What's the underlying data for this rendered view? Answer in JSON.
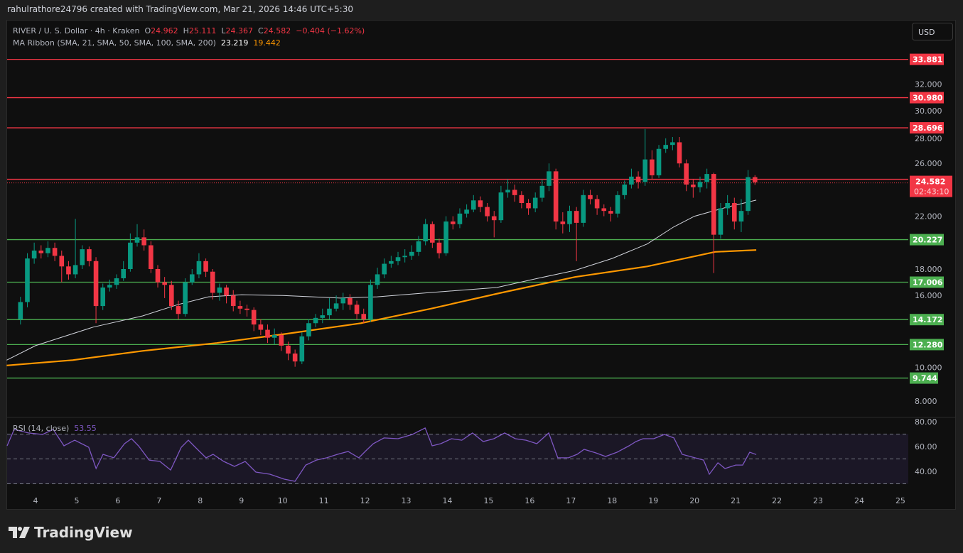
{
  "watermark": "rahulrathore24796 created with TradingView.com, Mar 21, 2026 14:46 UTC+5:30",
  "legend": {
    "symbol": "RIVER / U. S. Dollar · 4h · Kraken",
    "o_label": "O",
    "o": "24.962",
    "h_label": "H",
    "h": "25.111",
    "l_label": "L",
    "l": "24.367",
    "c_label": "C",
    "c": "24.582",
    "change": "−0.404 (−1.62%)",
    "ma_label": "MA Ribbon (SMA, 21, SMA, 50, SMA, 100, SMA, 200)",
    "ma1": "23.219",
    "ma2": "19.442"
  },
  "currency_button": "USD",
  "rsi_label": "RSI (14, close)",
  "rsi_value": "53.55",
  "countdown": "02:43:10",
  "brand": "TradingView",
  "colors": {
    "up": "#089981",
    "down": "#f23645",
    "resistance": "#f23645",
    "support": "#4caf50",
    "ma_fast": "#d1d4dc",
    "ma_slow": "#ff9800",
    "rsi": "#7e57c2"
  },
  "chart_data": {
    "type": "candlestick",
    "timeframe": "4h",
    "first_candle_day": 3.6,
    "candles_per_day": 6,
    "price_ticks": [
      "32.000",
      "30.000",
      "28.000",
      "26.000",
      "22.000",
      "18.000",
      "16.000",
      "10.000",
      "8.000"
    ],
    "x_ticks": [
      "4",
      "5",
      "6",
      "7",
      "8",
      "9",
      "10",
      "11",
      "12",
      "13",
      "14",
      "15",
      "16",
      "17",
      "18",
      "19",
      "20",
      "21",
      "22",
      "23",
      "24",
      "25"
    ],
    "current_price": "24.582",
    "resistance_levels": [
      "33.881",
      "30.980",
      "28.696"
    ],
    "support_levels": [
      "20.227",
      "17.006",
      "14.172",
      "12.280",
      "9.744"
    ],
    "candles": [
      [
        14.2,
        15.9,
        13.8,
        15.5
      ],
      [
        15.5,
        19.2,
        15.1,
        18.8
      ],
      [
        18.8,
        20.0,
        18.4,
        19.4
      ],
      [
        19.4,
        19.8,
        18.8,
        19.2
      ],
      [
        19.2,
        20.1,
        18.9,
        19.6
      ],
      [
        19.6,
        20.0,
        18.6,
        19.0
      ],
      [
        19.0,
        19.4,
        17.0,
        18.2
      ],
      [
        18.2,
        18.6,
        17.2,
        17.6
      ],
      [
        17.6,
        21.8,
        17.3,
        18.3
      ],
      [
        18.3,
        19.8,
        18.0,
        19.5
      ],
      [
        19.5,
        19.7,
        18.2,
        18.6
      ],
      [
        18.6,
        18.9,
        13.9,
        15.2
      ],
      [
        15.2,
        16.9,
        14.9,
        16.6
      ],
      [
        16.6,
        17.2,
        16.3,
        16.8
      ],
      [
        16.8,
        17.6,
        16.5,
        17.3
      ],
      [
        17.3,
        18.6,
        17.1,
        18.0
      ],
      [
        18.0,
        20.7,
        17.8,
        20.0
      ],
      [
        20.0,
        21.4,
        19.7,
        20.4
      ],
      [
        20.4,
        21.0,
        19.4,
        19.8
      ],
      [
        19.8,
        20.1,
        17.7,
        18.0
      ],
      [
        18.0,
        18.3,
        16.6,
        17.0
      ],
      [
        17.0,
        17.4,
        15.8,
        16.8
      ],
      [
        16.8,
        17.1,
        14.9,
        15.2
      ],
      [
        15.2,
        15.6,
        14.2,
        14.6
      ],
      [
        14.6,
        17.3,
        14.4,
        17.0
      ],
      [
        17.0,
        18.0,
        16.8,
        17.6
      ],
      [
        17.6,
        19.2,
        17.3,
        18.6
      ],
      [
        18.6,
        18.8,
        17.4,
        17.8
      ],
      [
        17.8,
        18.0,
        15.7,
        16.2
      ],
      [
        16.2,
        16.9,
        15.6,
        16.6
      ],
      [
        16.6,
        16.8,
        15.4,
        16.0
      ],
      [
        16.0,
        16.4,
        14.8,
        15.2
      ],
      [
        15.2,
        15.6,
        14.6,
        15.0
      ],
      [
        15.0,
        15.3,
        14.4,
        14.9
      ],
      [
        14.9,
        15.1,
        13.3,
        13.8
      ],
      [
        13.8,
        14.2,
        13.0,
        13.4
      ],
      [
        13.4,
        13.8,
        12.4,
        12.8
      ],
      [
        12.8,
        13.5,
        12.3,
        13.0
      ],
      [
        13.0,
        13.2,
        11.8,
        12.2
      ],
      [
        12.2,
        12.5,
        11.1,
        11.6
      ],
      [
        11.6,
        11.9,
        10.6,
        11.0
      ],
      [
        11.0,
        13.2,
        10.8,
        12.9
      ],
      [
        12.9,
        14.2,
        12.6,
        13.9
      ],
      [
        13.9,
        14.6,
        13.6,
        14.3
      ],
      [
        14.3,
        15.0,
        13.9,
        14.5
      ],
      [
        14.5,
        15.8,
        14.2,
        15.0
      ],
      [
        15.0,
        16.0,
        14.8,
        15.4
      ],
      [
        15.4,
        16.2,
        14.9,
        15.8
      ],
      [
        15.8,
        16.1,
        14.9,
        15.3
      ],
      [
        15.3,
        15.6,
        14.2,
        14.6
      ],
      [
        14.6,
        15.0,
        13.9,
        14.2
      ],
      [
        14.2,
        17.2,
        14.0,
        16.8
      ],
      [
        16.8,
        18.1,
        16.5,
        17.6
      ],
      [
        17.6,
        18.8,
        17.3,
        18.4
      ],
      [
        18.4,
        19.0,
        18.1,
        18.6
      ],
      [
        18.6,
        19.3,
        18.3,
        18.9
      ],
      [
        18.9,
        19.5,
        18.5,
        19.0
      ],
      [
        19.0,
        19.8,
        18.7,
        19.3
      ],
      [
        19.3,
        20.5,
        19.0,
        20.1
      ],
      [
        20.1,
        21.8,
        19.8,
        21.4
      ],
      [
        21.4,
        21.6,
        19.6,
        20.0
      ],
      [
        20.0,
        20.3,
        18.8,
        19.2
      ],
      [
        19.2,
        22.0,
        19.0,
        21.6
      ],
      [
        21.6,
        22.0,
        21.0,
        21.4
      ],
      [
        21.4,
        22.6,
        21.1,
        22.2
      ],
      [
        22.2,
        22.9,
        21.9,
        22.5
      ],
      [
        22.5,
        23.6,
        22.3,
        23.2
      ],
      [
        23.2,
        23.5,
        22.3,
        22.7
      ],
      [
        22.7,
        23.0,
        21.6,
        22.0
      ],
      [
        22.0,
        22.4,
        20.4,
        21.7
      ],
      [
        21.7,
        24.3,
        21.5,
        23.8
      ],
      [
        23.8,
        24.8,
        23.4,
        24.0
      ],
      [
        24.0,
        24.4,
        23.1,
        23.6
      ],
      [
        23.6,
        23.9,
        22.6,
        23.0
      ],
      [
        23.0,
        23.3,
        22.1,
        22.6
      ],
      [
        22.6,
        23.8,
        22.3,
        23.4
      ],
      [
        23.4,
        24.8,
        23.1,
        24.3
      ],
      [
        24.3,
        26.0,
        23.9,
        25.4
      ],
      [
        25.4,
        25.6,
        21.0,
        21.6
      ],
      [
        21.6,
        22.3,
        20.7,
        21.4
      ],
      [
        21.4,
        22.8,
        20.8,
        22.4
      ],
      [
        22.4,
        22.7,
        18.6,
        21.5
      ],
      [
        21.5,
        24.0,
        21.2,
        23.6
      ],
      [
        23.6,
        24.0,
        22.9,
        23.3
      ],
      [
        23.3,
        23.6,
        22.1,
        22.6
      ],
      [
        22.6,
        22.9,
        22.0,
        22.4
      ],
      [
        22.4,
        22.7,
        21.6,
        22.2
      ],
      [
        22.2,
        23.9,
        21.9,
        23.6
      ],
      [
        23.6,
        24.7,
        23.3,
        24.4
      ],
      [
        24.4,
        25.6,
        24.1,
        25.0
      ],
      [
        25.0,
        25.4,
        24.1,
        24.6
      ],
      [
        24.6,
        28.6,
        24.3,
        26.3
      ],
      [
        26.3,
        27.0,
        24.8,
        25.1
      ],
      [
        25.1,
        27.4,
        24.9,
        27.1
      ],
      [
        27.1,
        27.9,
        26.8,
        27.4
      ],
      [
        27.4,
        28.0,
        27.0,
        27.6
      ],
      [
        27.6,
        28.0,
        25.7,
        26.0
      ],
      [
        26.0,
        26.3,
        23.9,
        24.4
      ],
      [
        24.4,
        24.8,
        23.4,
        24.2
      ],
      [
        24.2,
        25.0,
        23.8,
        24.6
      ],
      [
        24.6,
        25.6,
        24.1,
        25.2
      ],
      [
        25.2,
        25.3,
        17.7,
        20.6
      ],
      [
        20.6,
        23.0,
        20.3,
        22.6
      ],
      [
        22.6,
        23.6,
        22.1,
        23.0
      ],
      [
        23.0,
        23.4,
        21.0,
        21.6
      ],
      [
        21.6,
        23.3,
        20.8,
        22.4
      ],
      [
        22.4,
        25.5,
        22.1,
        24.962
      ],
      [
        24.962,
        25.111,
        24.367,
        24.582
      ]
    ],
    "ma_fast": [
      [
        3.3,
        11.1
      ],
      [
        4.0,
        12.2
      ],
      [
        5.4,
        13.6
      ],
      [
        6.6,
        14.45
      ],
      [
        7.45,
        15.3
      ],
      [
        8.2,
        15.9
      ],
      [
        9.0,
        16.05
      ],
      [
        10.0,
        16.0
      ],
      [
        11.4,
        15.8
      ],
      [
        12.3,
        15.9
      ],
      [
        13.5,
        16.2
      ],
      [
        15.2,
        16.6
      ],
      [
        16.2,
        17.3
      ],
      [
        17.1,
        17.9
      ],
      [
        18.0,
        18.8
      ],
      [
        18.85,
        19.9
      ],
      [
        19.5,
        21.2
      ],
      [
        20.0,
        22.0
      ],
      [
        20.8,
        22.7
      ],
      [
        21.5,
        23.219
      ]
    ],
    "ma_slow": [
      [
        3.3,
        10.7
      ],
      [
        4.9,
        11.1
      ],
      [
        6.6,
        11.8
      ],
      [
        8.4,
        12.4
      ],
      [
        10.1,
        13.1
      ],
      [
        11.9,
        13.9
      ],
      [
        13.6,
        15.0
      ],
      [
        15.3,
        16.2
      ],
      [
        17.1,
        17.4
      ],
      [
        18.85,
        18.2
      ],
      [
        19.9,
        18.9
      ],
      [
        20.5,
        19.3
      ],
      [
        21.5,
        19.442
      ]
    ],
    "rsi": {
      "levels": [
        80,
        60,
        40
      ],
      "tick_labels": [
        "80.00",
        "60.00",
        "40.00"
      ],
      "band": [
        30,
        70
      ],
      "points": [
        [
          3.31,
          60.6
        ],
        [
          3.48,
          73.7
        ],
        [
          3.83,
          70.9
        ],
        [
          4.17,
          69.7
        ],
        [
          4.43,
          73.7
        ],
        [
          4.69,
          60.6
        ],
        [
          4.95,
          65.1
        ],
        [
          5.12,
          62.3
        ],
        [
          5.29,
          59.4
        ],
        [
          5.47,
          42.3
        ],
        [
          5.64,
          53.7
        ],
        [
          5.9,
          50.9
        ],
        [
          6.16,
          62.3
        ],
        [
          6.33,
          66.3
        ],
        [
          6.5,
          60.6
        ],
        [
          6.76,
          49.1
        ],
        [
          7.02,
          48.0
        ],
        [
          7.28,
          41.1
        ],
        [
          7.54,
          59.4
        ],
        [
          7.71,
          65.1
        ],
        [
          7.88,
          59.4
        ],
        [
          8.14,
          50.9
        ],
        [
          8.31,
          53.7
        ],
        [
          8.57,
          48.0
        ],
        [
          8.83,
          44.0
        ],
        [
          9.09,
          48.0
        ],
        [
          9.35,
          39.4
        ],
        [
          9.69,
          37.7
        ],
        [
          10.04,
          33.7
        ],
        [
          10.3,
          32.0
        ],
        [
          10.56,
          45.1
        ],
        [
          10.82,
          49.1
        ],
        [
          11.07,
          50.9
        ],
        [
          11.33,
          53.7
        ],
        [
          11.59,
          56.0
        ],
        [
          11.85,
          50.9
        ],
        [
          12.02,
          56.6
        ],
        [
          12.2,
          62.3
        ],
        [
          12.46,
          66.9
        ],
        [
          12.8,
          66.3
        ],
        [
          13.15,
          69.7
        ],
        [
          13.46,
          74.9
        ],
        [
          13.63,
          60.6
        ],
        [
          13.84,
          62.3
        ],
        [
          14.1,
          66.3
        ],
        [
          14.35,
          65.1
        ],
        [
          14.61,
          70.9
        ],
        [
          14.87,
          64.0
        ],
        [
          15.13,
          66.3
        ],
        [
          15.39,
          70.9
        ],
        [
          15.65,
          66.3
        ],
        [
          15.91,
          65.1
        ],
        [
          16.17,
          62.3
        ],
        [
          16.46,
          70.9
        ],
        [
          16.68,
          50.9
        ],
        [
          16.94,
          50.9
        ],
        [
          17.15,
          53.7
        ],
        [
          17.32,
          57.7
        ],
        [
          17.6,
          54.9
        ],
        [
          17.84,
          52.0
        ],
        [
          18.12,
          55.4
        ],
        [
          18.41,
          60.6
        ],
        [
          18.58,
          64.0
        ],
        [
          18.75,
          66.3
        ],
        [
          19.01,
          66.3
        ],
        [
          19.27,
          69.7
        ],
        [
          19.5,
          66.9
        ],
        [
          19.7,
          53.7
        ],
        [
          20.01,
          50.9
        ],
        [
          20.22,
          49.1
        ],
        [
          20.36,
          37.7
        ],
        [
          20.57,
          46.9
        ],
        [
          20.74,
          42.3
        ],
        [
          21.0,
          45.1
        ],
        [
          21.17,
          45.1
        ],
        [
          21.34,
          55.4
        ],
        [
          21.5,
          53.55
        ]
      ]
    }
  }
}
